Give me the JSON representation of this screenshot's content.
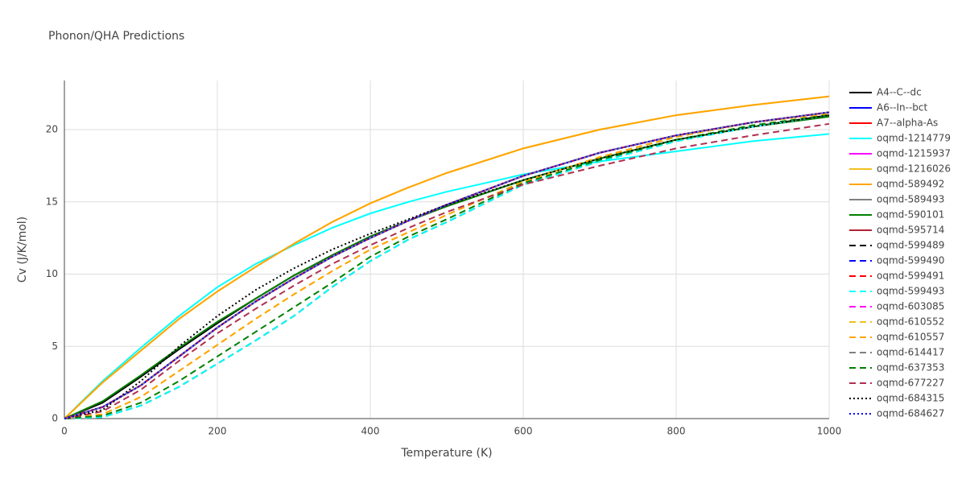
{
  "chart_data": {
    "type": "line",
    "title": "Phonon/QHA Predictions",
    "xlabel": "Temperature (K)",
    "ylabel": "Cv (J/K/mol)",
    "xlim": [
      0,
      1000
    ],
    "ylim": [
      0,
      23.4
    ],
    "xticks": [
      0,
      200,
      400,
      600,
      800,
      1000
    ],
    "yticks": [
      0,
      5,
      10,
      15,
      20
    ],
    "grid": true,
    "x": [
      0,
      50,
      100,
      150,
      200,
      250,
      300,
      350,
      400,
      450,
      500,
      600,
      700,
      800,
      900,
      1000
    ],
    "series": [
      {
        "name": "A4--C--dc",
        "color": "#000000",
        "dash": "solid",
        "values": [
          0,
          1.1,
          2.9,
          4.8,
          6.6,
          8.3,
          9.9,
          11.3,
          12.6,
          13.7,
          14.7,
          16.5,
          18.0,
          19.3,
          20.2,
          21.0
        ]
      },
      {
        "name": "A6--In--bct",
        "color": "#0000ff",
        "dash": "solid",
        "values": [
          0,
          0.8,
          2.3,
          4.3,
          6.3,
          8.1,
          9.7,
          11.2,
          12.5,
          13.7,
          14.8,
          16.8,
          18.4,
          19.6,
          20.5,
          21.2
        ]
      },
      {
        "name": "A7--alpha-As",
        "color": "#ff0000",
        "dash": "solid",
        "values": [
          0,
          0.8,
          2.3,
          4.3,
          6.3,
          8.1,
          9.7,
          11.2,
          12.5,
          13.7,
          14.8,
          16.8,
          18.4,
          19.6,
          20.5,
          21.2
        ]
      },
      {
        "name": "oqmd-1214779",
        "color": "#00ffff",
        "dash": "solid",
        "values": [
          0,
          2.6,
          4.9,
          7.1,
          9.1,
          10.7,
          12.0,
          13.2,
          14.2,
          15.0,
          15.7,
          16.9,
          17.8,
          18.5,
          19.2,
          19.7
        ]
      },
      {
        "name": "oqmd-1215937",
        "color": "#ff00ff",
        "dash": "solid",
        "values": [
          0,
          0.8,
          2.3,
          4.3,
          6.3,
          8.1,
          9.7,
          11.2,
          12.5,
          13.7,
          14.8,
          16.8,
          18.4,
          19.6,
          20.5,
          21.2
        ]
      },
      {
        "name": "oqmd-1216026",
        "color": "#f0c020",
        "dash": "solid",
        "values": [
          0,
          2.5,
          4.7,
          6.9,
          8.8,
          10.5,
          12.1,
          13.6,
          14.9,
          16.0,
          17.0,
          18.7,
          20.0,
          21.0,
          21.7,
          22.3
        ]
      },
      {
        "name": "oqmd-589492",
        "color": "#ffa500",
        "dash": "solid",
        "values": [
          0,
          2.5,
          4.7,
          6.9,
          8.8,
          10.5,
          12.1,
          13.6,
          14.9,
          16.0,
          17.0,
          18.7,
          20.0,
          21.0,
          21.7,
          22.3
        ]
      },
      {
        "name": "oqmd-589493",
        "color": "#808080",
        "dash": "solid",
        "values": [
          0,
          0.8,
          2.3,
          4.3,
          6.3,
          8.1,
          9.7,
          11.2,
          12.5,
          13.7,
          14.8,
          16.8,
          18.4,
          19.6,
          20.5,
          21.2
        ]
      },
      {
        "name": "oqmd-590101",
        "color": "#008000",
        "dash": "solid",
        "values": [
          0,
          1.2,
          3.0,
          4.9,
          6.7,
          8.3,
          9.9,
          11.3,
          12.6,
          13.7,
          14.7,
          16.5,
          18.0,
          19.3,
          20.2,
          20.9
        ]
      },
      {
        "name": "oqmd-595714",
        "color": "#b22234",
        "dash": "solid",
        "values": [
          0,
          0.8,
          2.3,
          4.3,
          6.3,
          8.1,
          9.7,
          11.2,
          12.5,
          13.7,
          14.8,
          16.8,
          18.4,
          19.6,
          20.5,
          21.2
        ]
      },
      {
        "name": "oqmd-599489",
        "color": "#000000",
        "dash": "dash",
        "values": [
          0,
          0.1,
          0.9,
          2.2,
          3.8,
          5.4,
          7.1,
          9.1,
          10.9,
          12.4,
          13.6,
          16.2,
          17.8,
          19.2,
          20.2,
          21.0
        ]
      },
      {
        "name": "oqmd-599490",
        "color": "#0000ff",
        "dash": "dash",
        "values": [
          0,
          0.8,
          2.3,
          4.3,
          6.3,
          8.1,
          9.7,
          11.2,
          12.5,
          13.7,
          14.8,
          16.8,
          18.4,
          19.6,
          20.5,
          21.2
        ]
      },
      {
        "name": "oqmd-599491",
        "color": "#ff0000",
        "dash": "dash",
        "values": [
          0,
          0.8,
          2.3,
          4.3,
          6.3,
          8.1,
          9.7,
          11.2,
          12.5,
          13.7,
          14.8,
          16.8,
          18.4,
          19.6,
          20.5,
          21.2
        ]
      },
      {
        "name": "oqmd-599493",
        "color": "#00ffff",
        "dash": "dash",
        "values": [
          0,
          0.1,
          0.9,
          2.2,
          3.8,
          5.4,
          7.1,
          9.1,
          10.9,
          12.4,
          13.6,
          16.2,
          17.8,
          19.2,
          20.2,
          21.0
        ]
      },
      {
        "name": "oqmd-603085",
        "color": "#ff00ff",
        "dash": "dash",
        "values": [
          0,
          0.8,
          2.3,
          4.3,
          6.3,
          8.1,
          9.7,
          11.2,
          12.5,
          13.7,
          14.8,
          16.8,
          18.4,
          19.6,
          20.5,
          21.2
        ]
      },
      {
        "name": "oqmd-610552",
        "color": "#f0c020",
        "dash": "dash",
        "values": [
          0,
          0.3,
          1.5,
          3.3,
          5.1,
          6.9,
          8.6,
          10.2,
          11.7,
          12.9,
          14.1,
          16.4,
          18.1,
          19.5,
          20.5,
          21.1
        ]
      },
      {
        "name": "oqmd-610557",
        "color": "#ffa500",
        "dash": "dash",
        "values": [
          0,
          0.3,
          1.5,
          3.3,
          5.1,
          6.9,
          8.6,
          10.2,
          11.7,
          12.9,
          14.1,
          16.4,
          18.1,
          19.5,
          20.5,
          21.1
        ]
      },
      {
        "name": "oqmd-614417",
        "color": "#808080",
        "dash": "dash",
        "values": [
          0,
          0.8,
          2.3,
          4.3,
          6.3,
          8.1,
          9.7,
          11.2,
          12.5,
          13.7,
          14.8,
          16.8,
          18.4,
          19.6,
          20.5,
          21.2
        ]
      },
      {
        "name": "oqmd-637353",
        "color": "#008000",
        "dash": "dash",
        "values": [
          0,
          0.2,
          1.1,
          2.6,
          4.3,
          6.0,
          7.7,
          9.4,
          11.2,
          12.6,
          13.8,
          16.3,
          17.9,
          19.3,
          20.3,
          21.0
        ]
      },
      {
        "name": "oqmd-677227",
        "color": "#b03050",
        "dash": "dash",
        "values": [
          0,
          0.5,
          2.0,
          4.0,
          5.9,
          7.6,
          9.2,
          10.7,
          12.0,
          13.2,
          14.3,
          16.2,
          17.5,
          18.7,
          19.6,
          20.4
        ]
      },
      {
        "name": "oqmd-684315",
        "color": "#000000",
        "dash": "dot",
        "values": [
          0,
          0.6,
          2.6,
          5.0,
          7.1,
          8.9,
          10.4,
          11.7,
          12.8,
          13.8,
          14.8,
          16.5,
          18.0,
          19.3,
          20.2,
          21.0
        ]
      },
      {
        "name": "oqmd-684627",
        "color": "#0000ff",
        "dash": "dot",
        "values": [
          0,
          0.8,
          2.3,
          4.3,
          6.3,
          8.1,
          9.7,
          11.2,
          12.5,
          13.7,
          14.8,
          16.8,
          18.4,
          19.6,
          20.5,
          21.2
        ]
      }
    ]
  }
}
